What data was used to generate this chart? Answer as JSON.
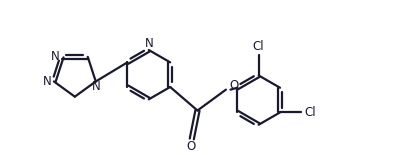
{
  "bg_color": "#ffffff",
  "line_color": "#1a1a2e",
  "line_width": 1.6,
  "font_size": 8.5,
  "fig_width": 4.19,
  "fig_height": 1.55,
  "xlim": [
    -0.3,
    9.5
  ],
  "ylim": [
    -0.5,
    3.5
  ]
}
